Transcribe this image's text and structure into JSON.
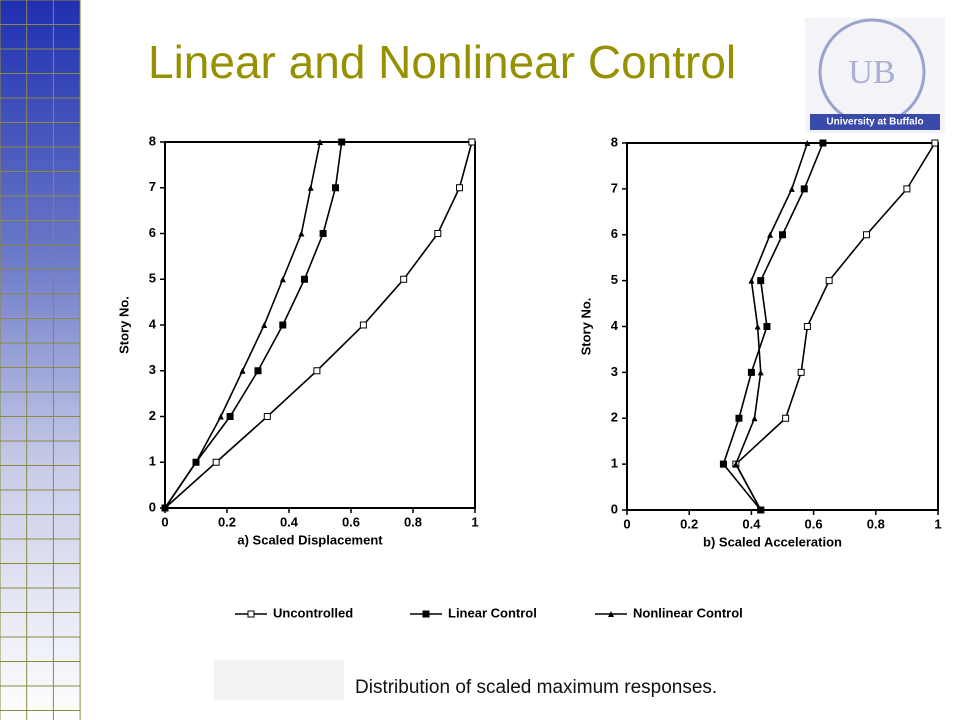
{
  "title": "Linear and Nonlinear Control",
  "logo": "University at Buffalo",
  "caption": "Distribution of scaled maximum responses.",
  "chart_data": [
    {
      "type": "line",
      "xlabel": "a) Scaled Displacement",
      "ylabel": "Story No.",
      "y": [
        0,
        1,
        2,
        3,
        4,
        5,
        6,
        7,
        8
      ],
      "xlim": [
        0,
        1
      ],
      "xticks": [
        0,
        0.2,
        0.4,
        0.6,
        0.8,
        1
      ],
      "ylim": [
        0,
        8
      ],
      "yticks": [
        0,
        1,
        2,
        3,
        4,
        5,
        6,
        7,
        8
      ],
      "series": [
        {
          "name": "Uncontrolled",
          "color": "#000000",
          "marker": "open-square",
          "values": [
            0,
            0.165,
            0.33,
            0.49,
            0.64,
            0.77,
            0.88,
            0.95,
            0.99
          ]
        },
        {
          "name": "Linear Control",
          "color": "#000000",
          "marker": "filled-square",
          "values": [
            0,
            0.1,
            0.21,
            0.3,
            0.38,
            0.45,
            0.51,
            0.55,
            0.57
          ]
        },
        {
          "name": "Nonlinear Control",
          "color": "#000000",
          "marker": "triangle",
          "values": [
            0,
            0.1,
            0.18,
            0.25,
            0.32,
            0.38,
            0.44,
            0.47,
            0.5
          ]
        }
      ]
    },
    {
      "type": "line",
      "xlabel": "b) Scaled Acceleration",
      "ylabel": "Story No.",
      "y": [
        0,
        1,
        2,
        3,
        4,
        5,
        6,
        7,
        8
      ],
      "xlim": [
        0,
        1
      ],
      "xticks": [
        0,
        0.2,
        0.4,
        0.6,
        0.8,
        1
      ],
      "ylim": [
        0,
        8
      ],
      "yticks": [
        0,
        1,
        2,
        3,
        4,
        5,
        6,
        7,
        8
      ],
      "series": [
        {
          "name": "Uncontrolled",
          "color": "#000000",
          "marker": "open-square",
          "values": [
            0.43,
            0.35,
            0.51,
            0.56,
            0.58,
            0.65,
            0.77,
            0.9,
            0.99
          ]
        },
        {
          "name": "Linear Control",
          "color": "#000000",
          "marker": "filled-square",
          "values": [
            0.43,
            0.31,
            0.36,
            0.4,
            0.45,
            0.43,
            0.5,
            0.57,
            0.63
          ]
        },
        {
          "name": "Nonlinear Control",
          "color": "#000000",
          "marker": "triangle",
          "values": [
            0.43,
            0.35,
            0.41,
            0.43,
            0.42,
            0.4,
            0.46,
            0.53,
            0.58
          ]
        }
      ]
    }
  ]
}
